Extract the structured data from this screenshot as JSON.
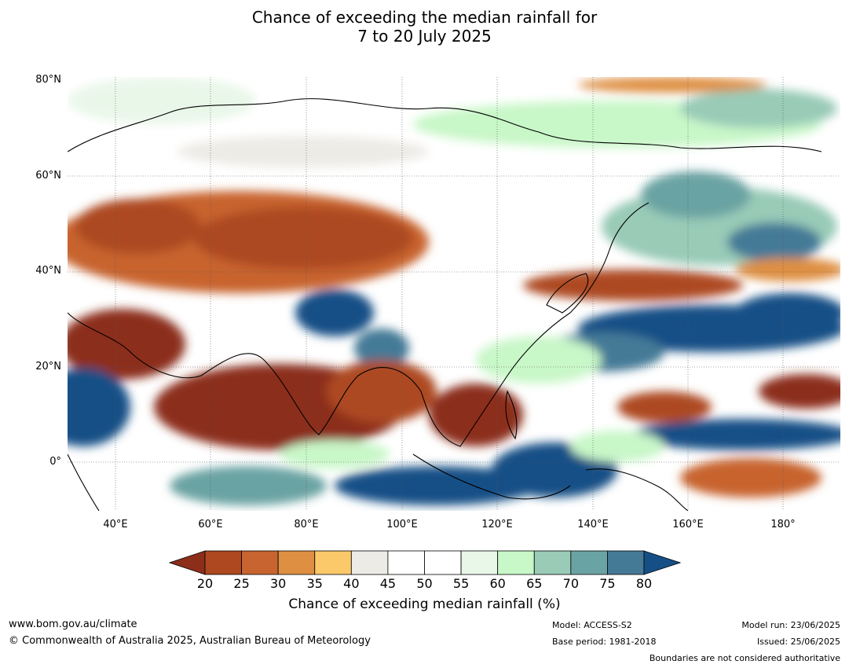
{
  "title_line1": "Chance of exceeding the median rainfall for",
  "title_line2": "7 to 20 July 2025",
  "lat_labels": [
    "80°N",
    "60°N",
    "40°N",
    "20°N",
    "0°"
  ],
  "lon_labels": [
    "40°E",
    "60°E",
    "80°E",
    "100°E",
    "120°E",
    "140°E",
    "160°E",
    "180°"
  ],
  "colorbar": {
    "ticks": [
      "20",
      "25",
      "30",
      "35",
      "40",
      "45",
      "50",
      "55",
      "60",
      "65",
      "70",
      "75",
      "80"
    ],
    "colors": [
      "#8c2e1a",
      "#ad4820",
      "#c8642f",
      "#de8f42",
      "#fbc86a",
      "#edebe6",
      "#ffffff",
      "#ffffff",
      "#e9f7e9",
      "#c8f7c8",
      "#99cbb7",
      "#6aa3a3",
      "#457a97",
      "#164f86"
    ],
    "title": "Chance of exceeding median rainfall (%)"
  },
  "footer": {
    "website": "www.bom.gov.au/climate",
    "copyright": "© Commonwealth of Australia 2025, Australian Bureau of Meteorology",
    "model": "Model: ACCESS-S2",
    "base_period": "Base period: 1981-2018",
    "model_run": "Model run: 23/06/2025",
    "issued": "Issued: 25/06/2025",
    "disclaimer": "Boundaries are not considered authoritative"
  }
}
